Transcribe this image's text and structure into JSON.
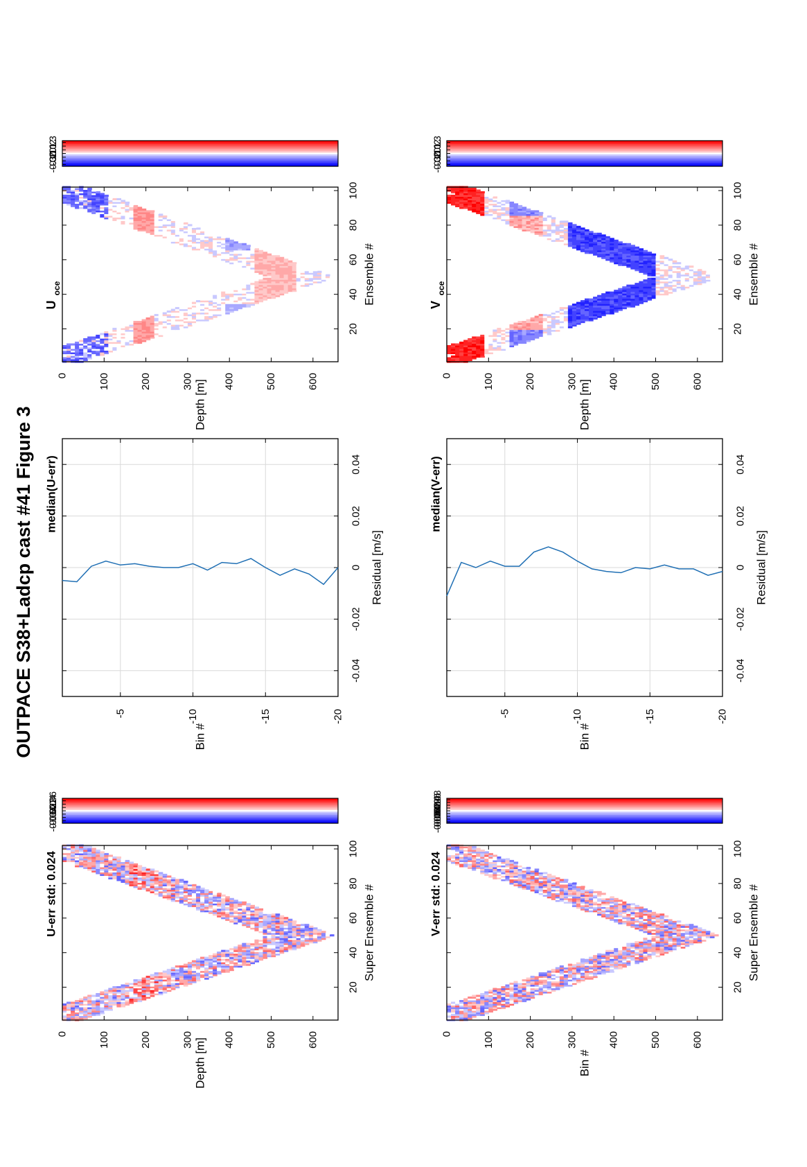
{
  "figure": {
    "title": "OUTPACE S38+Ladcp cast #41  Figure 3",
    "orientation": "rotated 90 degrees counter-clockwise",
    "colormap": "blue-white-red, 15 levels"
  },
  "chart_data": [
    {
      "id": "u-err",
      "type": "heatmap",
      "title": "U-err std: 0.024",
      "xlabel": "Super Ensemble #",
      "ylabel": "Depth [m]",
      "xlim": [
        1,
        102
      ],
      "ylim": [
        0,
        660
      ],
      "xticks": [
        "20",
        "40",
        "60",
        "80",
        "100"
      ],
      "yticks": [
        "0",
        "100",
        "200",
        "300",
        "400",
        "500",
        "600"
      ],
      "pattern": "V-shaped profile: depth increases from ~50 m at ensemble 1 to ~650 m at ensemble ~50, then back to ~50 m at ensemble ~102",
      "colorbar": {
        "range": [
          -0.075,
          0.075
        ],
        "ticks": [
          "0.06",
          "0.04",
          "0.02",
          "0",
          "-0.02",
          "-0.04",
          "-0.06"
        ]
      }
    },
    {
      "id": "median-u-err",
      "type": "line",
      "title": "median(U-err)",
      "xlabel": "Residual [m/s]",
      "ylabel": "Bin #",
      "xlim": [
        -0.05,
        0.05
      ],
      "ylim": [
        -20,
        -1
      ],
      "xticks": [
        "-0.04",
        "-0.02",
        "0",
        "0.02",
        "0.04"
      ],
      "yticks": [
        "-5",
        "-10",
        "-15",
        "-20"
      ],
      "grid": true,
      "bins": [
        -1,
        -2,
        -3,
        -4,
        -5,
        -6,
        -7,
        -8,
        -9,
        -10,
        -11,
        -12,
        -13,
        -14,
        -15,
        -16,
        -17,
        -18,
        -19,
        -20
      ],
      "residual": [
        -0.005,
        -0.0055,
        0.0005,
        0.0025,
        0.001,
        0.0015,
        0.0005,
        0.0,
        0.0,
        0.0015,
        -0.001,
        0.002,
        0.0015,
        0.0035,
        0.0,
        -0.003,
        -0.0005,
        -0.0025,
        -0.0065,
        0.0
      ]
    },
    {
      "id": "u-oce",
      "type": "heatmap",
      "title": "U",
      "title_subscript": "oce",
      "xlabel": "Ensemble #",
      "ylabel": "Depth [m]",
      "xlim": [
        1,
        102
      ],
      "ylim": [
        0,
        660
      ],
      "xticks": [
        "20",
        "40",
        "60",
        "80",
        "100"
      ],
      "yticks": [
        "0",
        "100",
        "200",
        "300",
        "400",
        "500",
        "600"
      ],
      "pattern": "same V-shaped cast profile",
      "colorbar": {
        "range": [
          -0.35,
          0.35
        ],
        "ticks": [
          "0.3",
          "0.2",
          "0.1",
          "0",
          "-0.1",
          "-0.2",
          "-0.3"
        ]
      }
    },
    {
      "id": "v-err",
      "type": "heatmap",
      "title": "V-err std: 0.024",
      "xlabel": "Super Ensemble #",
      "ylabel": "Bin #",
      "xlim": [
        1,
        102
      ],
      "ylim": [
        0,
        660
      ],
      "xticks": [
        "20",
        "40",
        "60",
        "80",
        "100"
      ],
      "yticks": [
        "0",
        "100",
        "200",
        "300",
        "400",
        "500",
        "600"
      ],
      "pattern": "V-shaped profile, noisy residuals",
      "colorbar": {
        "range": [
          -0.09,
          0.09
        ],
        "ticks": [
          "0.08",
          "0.06",
          "0.04",
          "0.02",
          "0",
          "-0.02",
          "-0.04",
          "-0.06",
          "-0.08"
        ]
      }
    },
    {
      "id": "median-v-err",
      "type": "line",
      "title": "median(V-err)",
      "xlabel": "Residual [m/s]",
      "ylabel": "Bin #",
      "xlim": [
        -0.05,
        0.05
      ],
      "ylim": [
        -20,
        -1
      ],
      "xticks": [
        "-0.04",
        "-0.02",
        "0",
        "0.02",
        "0.04"
      ],
      "yticks": [
        "-5",
        "-10",
        "-15",
        "-20"
      ],
      "grid": true,
      "bins": [
        -1,
        -2,
        -3,
        -4,
        -5,
        -6,
        -7,
        -8,
        -9,
        -10,
        -11,
        -12,
        -13,
        -14,
        -15,
        -16,
        -17,
        -18,
        -19,
        -20
      ],
      "residual": [
        -0.011,
        0.002,
        0.0,
        0.0025,
        0.0005,
        0.0005,
        0.006,
        0.008,
        0.006,
        0.0025,
        -0.0005,
        -0.0015,
        -0.002,
        0.0,
        -0.0005,
        0.001,
        -0.0005,
        -0.0005,
        -0.003,
        -0.0015
      ]
    },
    {
      "id": "v-oce",
      "type": "heatmap",
      "title": "V",
      "title_subscript": "oce",
      "xlabel": "Ensemble #",
      "ylabel": "Depth [m]",
      "xlim": [
        1,
        102
      ],
      "ylim": [
        0,
        660
      ],
      "xticks": [
        "20",
        "40",
        "60",
        "80",
        "100"
      ],
      "yticks": [
        "0",
        "100",
        "200",
        "300",
        "400",
        "500",
        "600"
      ],
      "pattern": "V-shaped profile, strong negative band at 300-500 m",
      "colorbar": {
        "range": [
          -0.35,
          0.35
        ],
        "ticks": [
          "0.3",
          "0.2",
          "0.1",
          "0",
          "-0.1",
          "-0.2",
          "-0.3"
        ]
      }
    }
  ]
}
